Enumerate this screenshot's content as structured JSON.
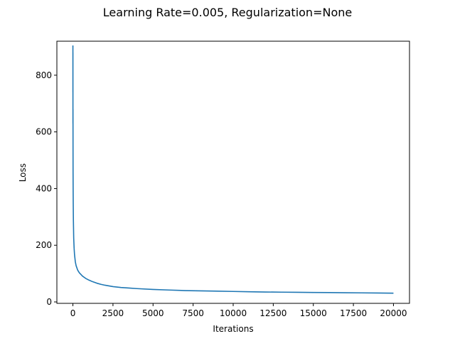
{
  "chart_data": {
    "type": "line",
    "title": "Learning Rate=0.005, Regularization=None",
    "xlabel": "Iterations",
    "ylabel": "Loss",
    "xlim": [
      -1000,
      21000
    ],
    "ylim": [
      -5,
      920
    ],
    "xticks": [
      0,
      2500,
      5000,
      7500,
      10000,
      12500,
      15000,
      17500,
      20000
    ],
    "yticks": [
      0,
      200,
      400,
      600,
      800
    ],
    "grid": false,
    "series": [
      {
        "color": "#1f77b4",
        "x": [
          0,
          1,
          2,
          3,
          5,
          8,
          10,
          15,
          20,
          30,
          50,
          75,
          100,
          150,
          200,
          300,
          400,
          500,
          600,
          800,
          1000,
          1250,
          1500,
          1750,
          2000,
          2500,
          3000,
          3500,
          4000,
          5000,
          6000,
          7000,
          8000,
          9000,
          10000,
          11000,
          12000,
          13000,
          14000,
          15000,
          16000,
          17000,
          18000,
          19000,
          20000
        ],
        "y": [
          905,
          740,
          880,
          630,
          680,
          530,
          460,
          400,
          350,
          290,
          225,
          190,
          168,
          142,
          128,
          112,
          103,
          97,
          91,
          83,
          77,
          71,
          66,
          62,
          59,
          54,
          51,
          49,
          47,
          44,
          42,
          40,
          39,
          38,
          37,
          36,
          35,
          34.5,
          34,
          33.5,
          33,
          32.5,
          32,
          31.5,
          31
        ]
      }
    ]
  }
}
